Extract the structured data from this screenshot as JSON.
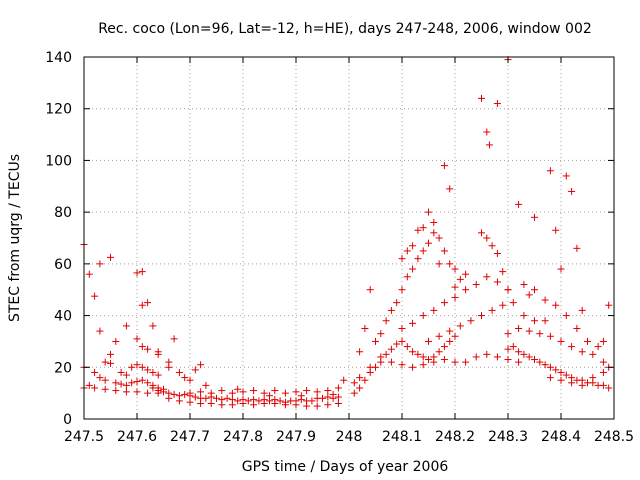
{
  "chart_data": {
    "type": "scatter",
    "title": "Rec. coco (Lon=96, Lat=-12, h=HE), days 247-248, 2006, window 002",
    "xlabel": "GPS time / Days of year 2006",
    "ylabel": "STEC from uqrg / TECUs",
    "xlim": [
      247.5,
      248.5
    ],
    "ylim": [
      0,
      140
    ],
    "xticks": [
      247.5,
      247.6,
      247.7,
      247.8,
      247.9,
      248,
      248.1,
      248.2,
      248.3,
      248.4,
      248.5
    ],
    "xtick_labels": [
      "247.5",
      "247.6",
      "247.7",
      "247.8",
      "247.9",
      "248",
      "248.1",
      "248.2",
      "248.3",
      "248.4",
      "248.5"
    ],
    "yticks": [
      0,
      20,
      40,
      60,
      80,
      100,
      120,
      140
    ],
    "ytick_labels": [
      "0",
      "20",
      "40",
      "60",
      "80",
      "100",
      "120",
      "140"
    ],
    "grid": true,
    "marker": "+",
    "color": "#e00000",
    "series": [
      {
        "name": "STEC",
        "points": [
          [
            247.5,
            67.5
          ],
          [
            247.51,
            56
          ],
          [
            247.52,
            47.5
          ],
          [
            247.53,
            60
          ],
          [
            247.55,
            62.5
          ],
          [
            247.53,
            34
          ],
          [
            247.54,
            22
          ],
          [
            247.55,
            25
          ],
          [
            247.55,
            21.5
          ],
          [
            247.5,
            20
          ],
          [
            247.52,
            18
          ],
          [
            247.53,
            16
          ],
          [
            247.54,
            15
          ],
          [
            247.56,
            14
          ],
          [
            247.57,
            13.5
          ],
          [
            247.58,
            13
          ],
          [
            247.59,
            14
          ],
          [
            247.6,
            14.5
          ],
          [
            247.61,
            15
          ],
          [
            247.62,
            14
          ],
          [
            247.63,
            13
          ],
          [
            247.64,
            12
          ],
          [
            247.65,
            11.5
          ],
          [
            247.5,
            12
          ],
          [
            247.51,
            13
          ],
          [
            247.52,
            12
          ],
          [
            247.54,
            11.5
          ],
          [
            247.56,
            11
          ],
          [
            247.58,
            10.5
          ],
          [
            247.6,
            10.5
          ],
          [
            247.62,
            10
          ],
          [
            247.64,
            10
          ],
          [
            247.57,
            18
          ],
          [
            247.58,
            17
          ],
          [
            247.59,
            20
          ],
          [
            247.6,
            21
          ],
          [
            247.61,
            20
          ],
          [
            247.62,
            19
          ],
          [
            247.63,
            18
          ],
          [
            247.64,
            17
          ],
          [
            247.58,
            36
          ],
          [
            247.6,
            56.5
          ],
          [
            247.61,
            57
          ],
          [
            247.61,
            44
          ],
          [
            247.62,
            45
          ],
          [
            247.63,
            36
          ],
          [
            247.6,
            31
          ],
          [
            247.61,
            28
          ],
          [
            247.64,
            26
          ],
          [
            247.66,
            22
          ],
          [
            247.67,
            31
          ],
          [
            247.56,
            30
          ],
          [
            247.62,
            27
          ],
          [
            247.64,
            25
          ],
          [
            247.66,
            20
          ],
          [
            247.68,
            18
          ],
          [
            247.69,
            16
          ],
          [
            247.7,
            15
          ],
          [
            247.71,
            19
          ],
          [
            247.72,
            21
          ],
          [
            247.63,
            12
          ],
          [
            247.64,
            11
          ],
          [
            247.65,
            10.5
          ],
          [
            247.66,
            10
          ],
          [
            247.67,
            9.5
          ],
          [
            247.68,
            9
          ],
          [
            247.69,
            9.5
          ],
          [
            247.7,
            9
          ],
          [
            247.71,
            8.5
          ],
          [
            247.72,
            8
          ],
          [
            247.73,
            8
          ],
          [
            247.74,
            8.5
          ],
          [
            247.75,
            8
          ],
          [
            247.76,
            7.5
          ],
          [
            247.77,
            8
          ],
          [
            247.78,
            7.5
          ],
          [
            247.79,
            7
          ],
          [
            247.8,
            7.5
          ],
          [
            247.81,
            7
          ],
          [
            247.82,
            7.5
          ],
          [
            247.83,
            7
          ],
          [
            247.84,
            7.5
          ],
          [
            247.85,
            7
          ],
          [
            247.86,
            7.5
          ],
          [
            247.87,
            7
          ],
          [
            247.88,
            6.5
          ],
          [
            247.89,
            7
          ],
          [
            247.9,
            7
          ],
          [
            247.91,
            7.5
          ],
          [
            247.92,
            7
          ],
          [
            247.93,
            7
          ],
          [
            247.94,
            8
          ],
          [
            247.95,
            8
          ],
          [
            247.96,
            8.5
          ],
          [
            247.97,
            8
          ],
          [
            247.98,
            8.5
          ],
          [
            247.66,
            8
          ],
          [
            247.68,
            7
          ],
          [
            247.7,
            6.5
          ],
          [
            247.72,
            6
          ],
          [
            247.74,
            6
          ],
          [
            247.76,
            5.5
          ],
          [
            247.78,
            5.5
          ],
          [
            247.8,
            6
          ],
          [
            247.82,
            5.5
          ],
          [
            247.84,
            6
          ],
          [
            247.86,
            6
          ],
          [
            247.88,
            5.5
          ],
          [
            247.9,
            5.5
          ],
          [
            247.92,
            5
          ],
          [
            247.94,
            5
          ],
          [
            247.96,
            5.5
          ],
          [
            247.98,
            6
          ],
          [
            247.7,
            10
          ],
          [
            247.72,
            10.5
          ],
          [
            247.74,
            10
          ],
          [
            247.76,
            11
          ],
          [
            247.78,
            10
          ],
          [
            247.8,
            10.5
          ],
          [
            247.82,
            11
          ],
          [
            247.84,
            10
          ],
          [
            247.86,
            11
          ],
          [
            247.88,
            10
          ],
          [
            247.9,
            10.5
          ],
          [
            247.92,
            11
          ],
          [
            247.94,
            10.5
          ],
          [
            247.96,
            11
          ],
          [
            247.98,
            12
          ],
          [
            247.99,
            15
          ],
          [
            247.73,
            13
          ],
          [
            247.79,
            11.5
          ],
          [
            247.85,
            9
          ],
          [
            247.91,
            9
          ],
          [
            247.97,
            9.5
          ],
          [
            248.01,
            10
          ],
          [
            248.02,
            12
          ],
          [
            248.03,
            15
          ],
          [
            248.04,
            18
          ],
          [
            248.05,
            20
          ],
          [
            248.06,
            22
          ],
          [
            248.07,
            25
          ],
          [
            248.08,
            27
          ],
          [
            248.09,
            29
          ],
          [
            248.1,
            30
          ],
          [
            248.11,
            28
          ],
          [
            248.12,
            26
          ],
          [
            248.13,
            25
          ],
          [
            248.14,
            24
          ],
          [
            248.15,
            23
          ],
          [
            248.16,
            24
          ],
          [
            248.17,
            26
          ],
          [
            248.18,
            28
          ],
          [
            248.19,
            30
          ],
          [
            248.2,
            32
          ],
          [
            248.01,
            14
          ],
          [
            248.02,
            16
          ],
          [
            248.04,
            20
          ],
          [
            248.06,
            24
          ],
          [
            248.08,
            22
          ],
          [
            248.1,
            21
          ],
          [
            248.12,
            20
          ],
          [
            248.14,
            21
          ],
          [
            248.16,
            22
          ],
          [
            248.18,
            23
          ],
          [
            248.2,
            22
          ],
          [
            248.22,
            22
          ],
          [
            248.24,
            24
          ],
          [
            248.26,
            25
          ],
          [
            248.28,
            24
          ],
          [
            248.3,
            23
          ],
          [
            248.32,
            22
          ],
          [
            248.02,
            26
          ],
          [
            248.03,
            35
          ],
          [
            248.04,
            50
          ],
          [
            248.05,
            30
          ],
          [
            248.06,
            33
          ],
          [
            248.07,
            38
          ],
          [
            248.08,
            42
          ],
          [
            248.09,
            45
          ],
          [
            248.1,
            50
          ],
          [
            248.11,
            55
          ],
          [
            248.12,
            58
          ],
          [
            248.13,
            62
          ],
          [
            248.14,
            65
          ],
          [
            248.15,
            68
          ],
          [
            248.16,
            72
          ],
          [
            248.17,
            70
          ],
          [
            248.18,
            65
          ],
          [
            248.19,
            60
          ],
          [
            248.2,
            58
          ],
          [
            248.1,
            62
          ],
          [
            248.11,
            65
          ],
          [
            248.12,
            67
          ],
          [
            248.13,
            73
          ],
          [
            248.14,
            74
          ],
          [
            248.15,
            80
          ],
          [
            248.16,
            76
          ],
          [
            248.17,
            60
          ],
          [
            248.18,
            98
          ],
          [
            248.19,
            89
          ],
          [
            248.2,
            51
          ],
          [
            248.21,
            54
          ],
          [
            248.22,
            56
          ],
          [
            248.1,
            35
          ],
          [
            248.12,
            37
          ],
          [
            248.14,
            40
          ],
          [
            248.16,
            42
          ],
          [
            248.18,
            45
          ],
          [
            248.2,
            47
          ],
          [
            248.22,
            50
          ],
          [
            248.24,
            52
          ],
          [
            248.26,
            55
          ],
          [
            248.28,
            53
          ],
          [
            248.3,
            50
          ],
          [
            248.15,
            30
          ],
          [
            248.17,
            32
          ],
          [
            248.19,
            34
          ],
          [
            248.21,
            36
          ],
          [
            248.23,
            38
          ],
          [
            248.25,
            40
          ],
          [
            248.27,
            42
          ],
          [
            248.29,
            44
          ],
          [
            248.31,
            45
          ],
          [
            248.33,
            40
          ],
          [
            248.35,
            38
          ],
          [
            248.25,
            124
          ],
          [
            248.26,
            111
          ],
          [
            248.265,
            106
          ],
          [
            248.28,
            122
          ],
          [
            248.3,
            139
          ],
          [
            248.25,
            72
          ],
          [
            248.26,
            70
          ],
          [
            248.27,
            67
          ],
          [
            248.28,
            64
          ],
          [
            248.29,
            57
          ],
          [
            248.3,
            50
          ],
          [
            248.32,
            83
          ],
          [
            248.33,
            52
          ],
          [
            248.34,
            48
          ],
          [
            248.35,
            78
          ],
          [
            248.37,
            38
          ],
          [
            248.38,
            96
          ],
          [
            248.39,
            73
          ],
          [
            248.4,
            58
          ],
          [
            248.41,
            94
          ],
          [
            248.42,
            88
          ],
          [
            248.43,
            66
          ],
          [
            248.44,
            42
          ],
          [
            248.3,
            27
          ],
          [
            248.31,
            28
          ],
          [
            248.32,
            26
          ],
          [
            248.33,
            25
          ],
          [
            248.34,
            24
          ],
          [
            248.35,
            23
          ],
          [
            248.36,
            22
          ],
          [
            248.37,
            21
          ],
          [
            248.38,
            20
          ],
          [
            248.39,
            19
          ],
          [
            248.4,
            18
          ],
          [
            248.41,
            17
          ],
          [
            248.42,
            16
          ],
          [
            248.43,
            15
          ],
          [
            248.44,
            15
          ],
          [
            248.45,
            14
          ],
          [
            248.46,
            14
          ],
          [
            248.47,
            13
          ],
          [
            248.48,
            13
          ],
          [
            248.49,
            12
          ],
          [
            248.3,
            33
          ],
          [
            248.32,
            35
          ],
          [
            248.34,
            34
          ],
          [
            248.36,
            33
          ],
          [
            248.38,
            32
          ],
          [
            248.4,
            30
          ],
          [
            248.42,
            28
          ],
          [
            248.44,
            26
          ],
          [
            248.46,
            25
          ],
          [
            248.48,
            22
          ],
          [
            248.49,
            20
          ],
          [
            248.35,
            50
          ],
          [
            248.37,
            46
          ],
          [
            248.39,
            44
          ],
          [
            248.41,
            40
          ],
          [
            248.43,
            35
          ],
          [
            248.45,
            30
          ],
          [
            248.47,
            28
          ],
          [
            248.48,
            30
          ],
          [
            248.49,
            44
          ],
          [
            248.38,
            16
          ],
          [
            248.4,
            15
          ],
          [
            248.42,
            14
          ],
          [
            248.44,
            13
          ],
          [
            248.46,
            16
          ],
          [
            248.48,
            18
          ]
        ]
      }
    ]
  }
}
